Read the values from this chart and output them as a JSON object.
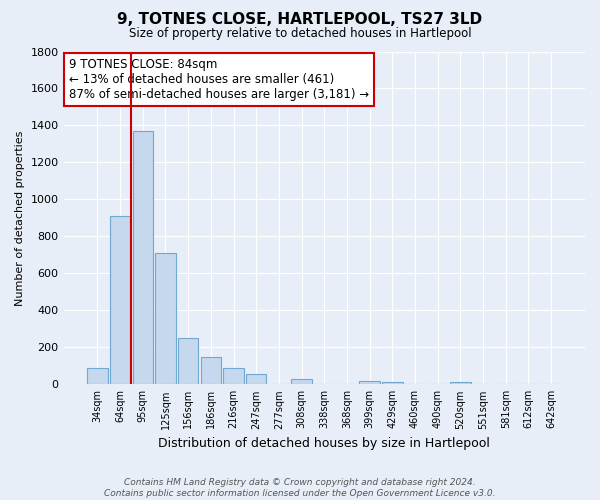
{
  "title": "9, TOTNES CLOSE, HARTLEPOOL, TS27 3LD",
  "subtitle": "Size of property relative to detached houses in Hartlepool",
  "xlabel": "Distribution of detached houses by size in Hartlepool",
  "ylabel": "Number of detached properties",
  "bar_color": "#c5d8ee",
  "bar_edge_color": "#6fa8d0",
  "categories": [
    "34sqm",
    "64sqm",
    "95sqm",
    "125sqm",
    "156sqm",
    "186sqm",
    "216sqm",
    "247sqm",
    "277sqm",
    "308sqm",
    "338sqm",
    "368sqm",
    "399sqm",
    "429sqm",
    "460sqm",
    "490sqm",
    "520sqm",
    "551sqm",
    "581sqm",
    "612sqm",
    "642sqm"
  ],
  "values": [
    90,
    910,
    1370,
    710,
    250,
    145,
    90,
    55,
    0,
    30,
    0,
    0,
    20,
    15,
    0,
    0,
    15,
    0,
    0,
    0,
    0
  ],
  "ylim": [
    0,
    1800
  ],
  "yticks": [
    0,
    200,
    400,
    600,
    800,
    1000,
    1200,
    1400,
    1600,
    1800
  ],
  "vline_x_idx": 1.5,
  "vline_color": "#cc0000",
  "annotation_line1": "9 TOTNES CLOSE: 84sqm",
  "annotation_line2": "← 13% of detached houses are smaller (461)",
  "annotation_line3": "87% of semi-detached houses are larger (3,181) →",
  "annotation_box_color": "#ffffff",
  "annotation_box_edge": "#cc0000",
  "footer_text": "Contains HM Land Registry data © Crown copyright and database right 2024.\nContains public sector information licensed under the Open Government Licence v3.0.",
  "background_color": "#e8eef8",
  "plot_bg_color": "#e8eef8",
  "grid_color": "#ffffff"
}
